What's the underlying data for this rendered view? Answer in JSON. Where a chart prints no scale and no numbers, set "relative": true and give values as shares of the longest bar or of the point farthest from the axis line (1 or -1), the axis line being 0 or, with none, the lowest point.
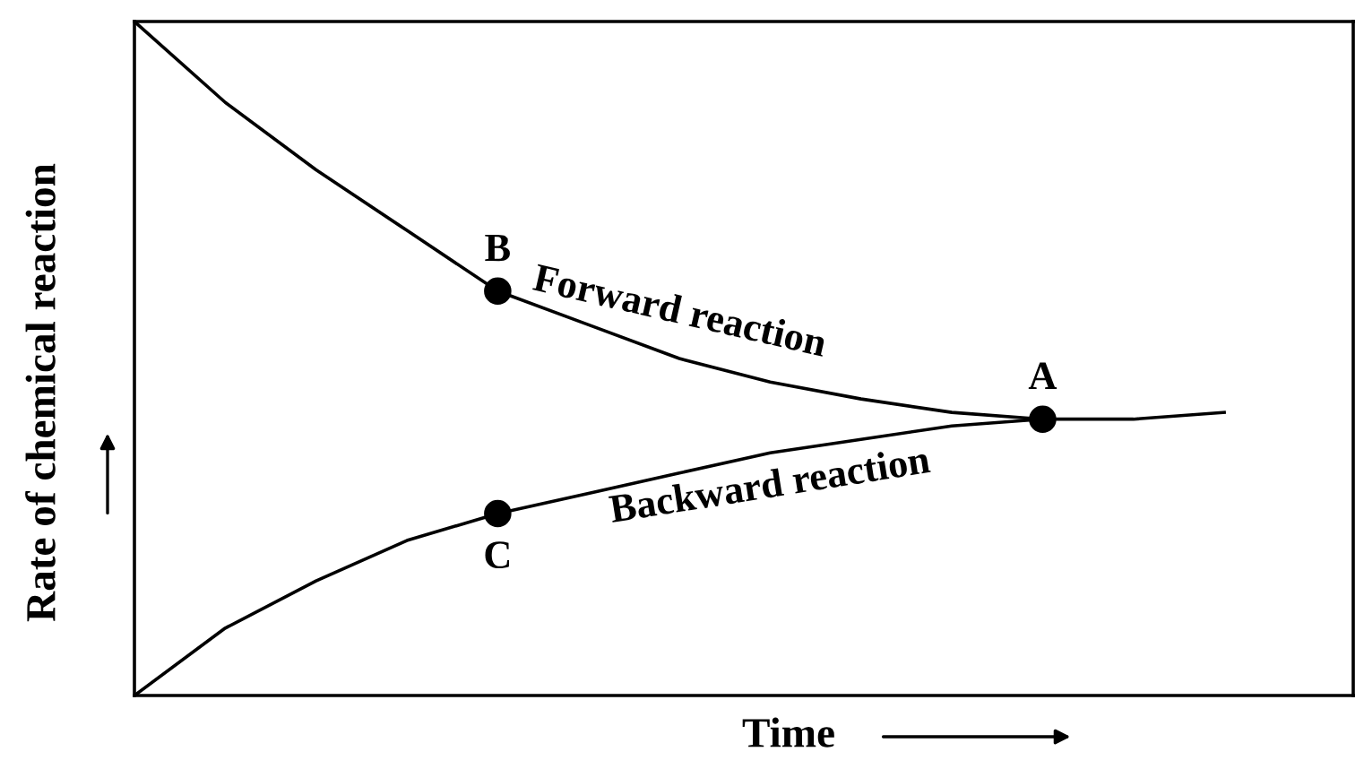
{
  "chart_data": {
    "type": "line",
    "relative": true,
    "xlabel": "Time",
    "ylabel": "Rate of chemical reaction",
    "grid": false,
    "line_style": "solid",
    "categories": [
      null,
      null,
      null,
      null,
      null,
      null,
      null,
      null,
      null,
      null,
      null,
      null,
      null
    ],
    "series": [
      {
        "name": "Forward reaction",
        "color": "#000000",
        "values": [
          1.0,
          0.88,
          0.78,
          0.69,
          0.6,
          0.55,
          0.5,
          0.465,
          0.44,
          0.42,
          0.41,
          0.41,
          0.42
        ]
      },
      {
        "name": "Backward reaction",
        "color": "#000000",
        "values": [
          0.0,
          0.1,
          0.17,
          0.23,
          0.27,
          0.3,
          0.33,
          0.36,
          0.38,
          0.4,
          0.41,
          null,
          null
        ]
      }
    ],
    "annotations": [
      {
        "text": "B",
        "y": 0.6
      },
      {
        "text": "C",
        "y": 0.27
      },
      {
        "text": "A",
        "y": 0.41
      }
    ]
  }
}
